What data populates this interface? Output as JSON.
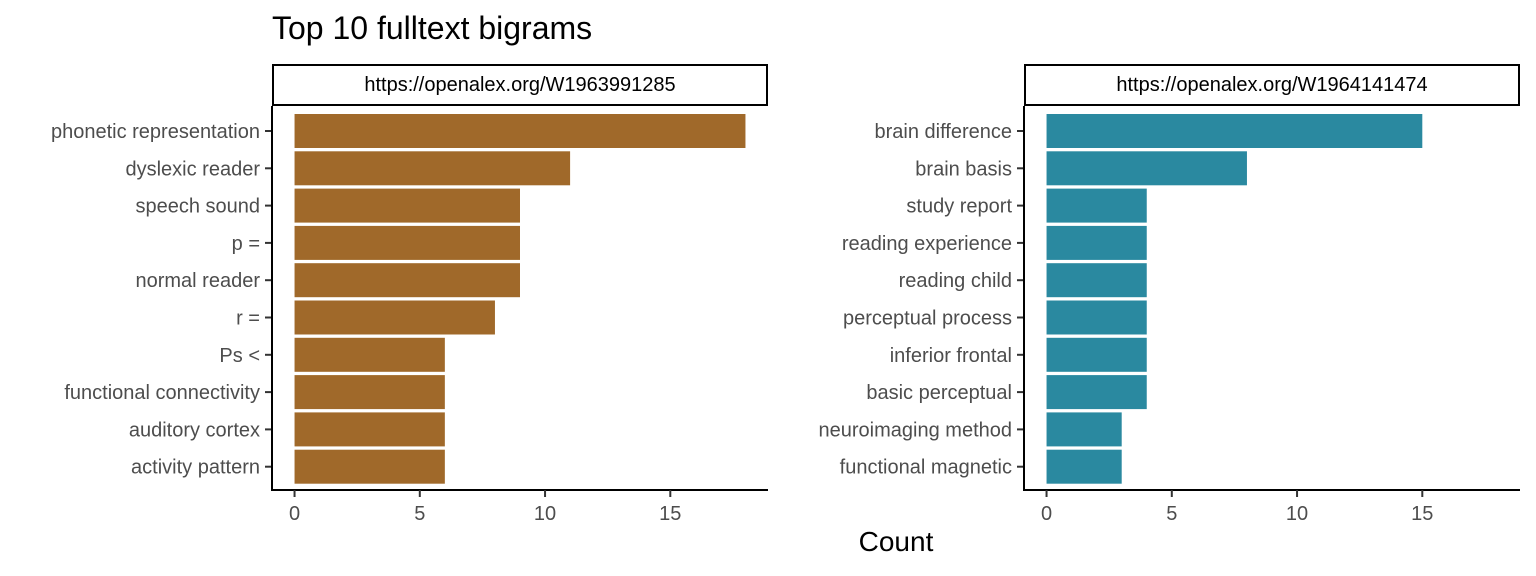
{
  "title": "Top 10 fulltext bigrams",
  "xlabel": "Count",
  "chart_data": [
    {
      "type": "bar",
      "orientation": "horizontal",
      "facet_label": "https://openalex.org/W1963991285",
      "color": "#A0692A",
      "categories": [
        "phonetic representation",
        "dyslexic reader",
        "speech sound",
        "p =",
        "normal reader",
        "r =",
        "Ps <",
        "functional connectivity",
        "auditory cortex",
        "activity pattern"
      ],
      "values": [
        18,
        11,
        9,
        9,
        9,
        8,
        6,
        6,
        6,
        6
      ],
      "xticks": [
        0,
        5,
        10,
        15
      ],
      "xlim": [
        -0.9,
        18.9
      ]
    },
    {
      "type": "bar",
      "orientation": "horizontal",
      "facet_label": "https://openalex.org/W1964141474",
      "color": "#2A89A0",
      "categories": [
        "brain difference",
        "brain basis",
        "study report",
        "reading experience",
        "reading child",
        "perceptual process",
        "inferior frontal",
        "basic perceptual",
        "neuroimaging method",
        "functional magnetic"
      ],
      "values": [
        15,
        8,
        4,
        4,
        4,
        4,
        4,
        4,
        3,
        3
      ],
      "xticks": [
        0,
        5,
        10,
        15
      ],
      "xlim": [
        -0.9,
        18.9
      ]
    }
  ]
}
